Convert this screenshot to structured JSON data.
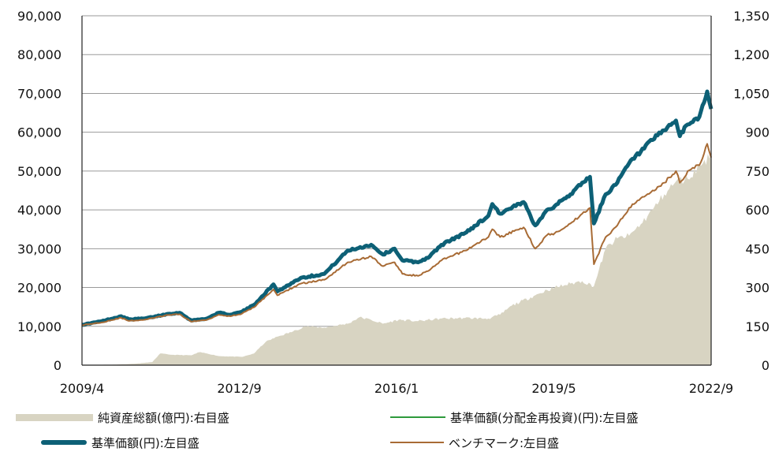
{
  "chart_data": {
    "type": "line",
    "left_axis": {
      "ticks": [
        "0",
        "10,000",
        "20,000",
        "30,000",
        "40,000",
        "50,000",
        "60,000",
        "70,000",
        "80,000",
        "90,000"
      ],
      "ylim": [
        0,
        90000
      ]
    },
    "right_axis": {
      "ticks": [
        "0",
        "150",
        "300",
        "450",
        "600",
        "750",
        "900",
        "1,050",
        "1,200",
        "1,350"
      ],
      "ylim": [
        0,
        1350
      ]
    },
    "x_ticks": [
      "2009/4",
      "2012/9",
      "2016/1",
      "2019/5",
      "2022/9"
    ],
    "x_range": [
      "2009/4",
      "2022/9"
    ],
    "grid": "horizontal",
    "legend_placement": "bottom",
    "series": [
      {
        "name": "純資産総額(億円):右目盛",
        "kind": "area",
        "axis": "right",
        "color": "#d8d4c2",
        "points": [
          [
            "2009/4",
            1
          ],
          [
            "2009/12",
            2
          ],
          [
            "2010/6",
            6
          ],
          [
            "2010/10",
            12
          ],
          [
            "2010/12",
            45
          ],
          [
            "2011/3",
            40
          ],
          [
            "2011/8",
            38
          ],
          [
            "2011/10",
            50
          ],
          [
            "2011/12",
            45
          ],
          [
            "2012/3",
            35
          ],
          [
            "2012/9",
            32
          ],
          [
            "2012/12",
            45
          ],
          [
            "2013/3",
            90
          ],
          [
            "2013/6",
            110
          ],
          [
            "2013/10",
            130
          ],
          [
            "2014/1",
            150
          ],
          [
            "2014/6",
            145
          ],
          [
            "2014/12",
            160
          ],
          [
            "2015/3",
            185
          ],
          [
            "2015/6",
            175
          ],
          [
            "2015/9",
            160
          ],
          [
            "2016/1",
            175
          ],
          [
            "2016/6",
            170
          ],
          [
            "2016/12",
            180
          ],
          [
            "2017/6",
            182
          ],
          [
            "2017/12",
            180
          ],
          [
            "2018/3",
            195
          ],
          [
            "2018/6",
            230
          ],
          [
            "2018/12",
            270
          ],
          [
            "2019/3",
            290
          ],
          [
            "2019/5",
            300
          ],
          [
            "2019/9",
            315
          ],
          [
            "2019/12",
            325
          ],
          [
            "2020/3",
            305
          ],
          [
            "2020/6",
            450
          ],
          [
            "2020/9",
            490
          ],
          [
            "2020/12",
            500
          ],
          [
            "2021/3",
            545
          ],
          [
            "2021/6",
            600
          ],
          [
            "2021/9",
            660
          ],
          [
            "2021/12",
            710
          ],
          [
            "2022/3",
            720
          ],
          [
            "2022/6",
            770
          ],
          [
            "2022/9",
            810
          ]
        ]
      },
      {
        "name": "基準価額(分配金再投資)(円):左目盛",
        "kind": "line",
        "axis": "left",
        "color": "#2e9a3c",
        "points": [
          [
            "2009/4",
            10400
          ],
          [
            "2009/9",
            11300
          ],
          [
            "2010/2",
            12600
          ],
          [
            "2010/4",
            11800
          ],
          [
            "2010/8",
            12000
          ],
          [
            "2011/2",
            13200
          ],
          [
            "2011/5",
            13500
          ],
          [
            "2011/8",
            11500
          ],
          [
            "2011/12",
            12000
          ],
          [
            "2012/3",
            13500
          ],
          [
            "2012/6",
            13000
          ],
          [
            "2012/9",
            13800
          ],
          [
            "2012/12",
            15500
          ],
          [
            "2013/5",
            20800
          ],
          [
            "2013/6",
            19000
          ],
          [
            "2013/12",
            22500
          ],
          [
            "2014/6",
            23500
          ],
          [
            "2014/12",
            29500
          ],
          [
            "2015/6",
            31000
          ],
          [
            "2015/9",
            28500
          ],
          [
            "2015/12",
            30000
          ],
          [
            "2016/2",
            27000
          ],
          [
            "2016/6",
            26500
          ],
          [
            "2016/9",
            28000
          ],
          [
            "2016/12",
            31000
          ],
          [
            "2017/6",
            34000
          ],
          [
            "2017/12",
            38500
          ],
          [
            "2018/1",
            41500
          ],
          [
            "2018/3",
            39000
          ],
          [
            "2018/9",
            42000
          ],
          [
            "2018/12",
            36000
          ],
          [
            "2019/3",
            40000
          ],
          [
            "2019/5",
            41000
          ],
          [
            "2019/9",
            44000
          ],
          [
            "2019/12",
            47000
          ],
          [
            "2020/2",
            48500
          ],
          [
            "2020/3",
            36500
          ],
          [
            "2020/6",
            44000
          ],
          [
            "2020/9",
            47000
          ],
          [
            "2020/12",
            52000
          ],
          [
            "2021/3",
            55000
          ],
          [
            "2021/6",
            58000
          ],
          [
            "2021/9",
            60500
          ],
          [
            "2021/12",
            63000
          ],
          [
            "2022/1",
            59000
          ],
          [
            "2022/3",
            62000
          ],
          [
            "2022/6",
            64000
          ],
          [
            "2022/8",
            70500
          ],
          [
            "2022/9",
            66000
          ]
        ]
      },
      {
        "name": "基準価額(円):左目盛",
        "kind": "line",
        "axis": "left",
        "color": "#0d6076",
        "points": [
          [
            "2009/4",
            10400
          ],
          [
            "2009/9",
            11300
          ],
          [
            "2010/2",
            12600
          ],
          [
            "2010/4",
            11800
          ],
          [
            "2010/8",
            12000
          ],
          [
            "2011/2",
            13200
          ],
          [
            "2011/5",
            13500
          ],
          [
            "2011/8",
            11500
          ],
          [
            "2011/12",
            12000
          ],
          [
            "2012/3",
            13500
          ],
          [
            "2012/6",
            13000
          ],
          [
            "2012/9",
            13800
          ],
          [
            "2012/12",
            15500
          ],
          [
            "2013/5",
            20800
          ],
          [
            "2013/6",
            19000
          ],
          [
            "2013/12",
            22500
          ],
          [
            "2014/6",
            23500
          ],
          [
            "2014/12",
            29500
          ],
          [
            "2015/6",
            31000
          ],
          [
            "2015/9",
            28500
          ],
          [
            "2015/12",
            30000
          ],
          [
            "2016/2",
            27000
          ],
          [
            "2016/6",
            26500
          ],
          [
            "2016/9",
            28000
          ],
          [
            "2016/12",
            31000
          ],
          [
            "2017/6",
            34000
          ],
          [
            "2017/12",
            38500
          ],
          [
            "2018/1",
            41500
          ],
          [
            "2018/3",
            39000
          ],
          [
            "2018/9",
            42000
          ],
          [
            "2018/12",
            36000
          ],
          [
            "2019/3",
            40000
          ],
          [
            "2019/5",
            41000
          ],
          [
            "2019/9",
            44000
          ],
          [
            "2019/12",
            47000
          ],
          [
            "2020/2",
            48500
          ],
          [
            "2020/3",
            36500
          ],
          [
            "2020/6",
            44000
          ],
          [
            "2020/9",
            47000
          ],
          [
            "2020/12",
            52000
          ],
          [
            "2021/3",
            55000
          ],
          [
            "2021/6",
            58000
          ],
          [
            "2021/9",
            60500
          ],
          [
            "2021/12",
            63000
          ],
          [
            "2022/1",
            59000
          ],
          [
            "2022/3",
            62000
          ],
          [
            "2022/6",
            64000
          ],
          [
            "2022/8",
            70500
          ],
          [
            "2022/9",
            66000
          ]
        ]
      },
      {
        "name": "ベンチマーク:左目盛",
        "kind": "line",
        "axis": "left",
        "color": "#a86b35",
        "points": [
          [
            "2009/4",
            10300
          ],
          [
            "2009/9",
            11000
          ],
          [
            "2010/2",
            12200
          ],
          [
            "2010/4",
            11400
          ],
          [
            "2010/8",
            11700
          ],
          [
            "2011/2",
            12900
          ],
          [
            "2011/5",
            13100
          ],
          [
            "2011/8",
            11200
          ],
          [
            "2011/12",
            11700
          ],
          [
            "2012/3",
            13000
          ],
          [
            "2012/6",
            12600
          ],
          [
            "2012/9",
            13300
          ],
          [
            "2012/12",
            14900
          ],
          [
            "2013/5",
            19500
          ],
          [
            "2013/6",
            18000
          ],
          [
            "2013/12",
            21000
          ],
          [
            "2014/6",
            22000
          ],
          [
            "2014/12",
            26500
          ],
          [
            "2015/6",
            28000
          ],
          [
            "2015/9",
            25500
          ],
          [
            "2015/12",
            26500
          ],
          [
            "2016/2",
            23500
          ],
          [
            "2016/6",
            23000
          ],
          [
            "2016/9",
            24500
          ],
          [
            "2016/12",
            27000
          ],
          [
            "2017/6",
            29500
          ],
          [
            "2017/12",
            33000
          ],
          [
            "2018/1",
            35000
          ],
          [
            "2018/3",
            33000
          ],
          [
            "2018/9",
            35500
          ],
          [
            "2018/12",
            30000
          ],
          [
            "2019/3",
            33500
          ],
          [
            "2019/5",
            34000
          ],
          [
            "2019/9",
            36500
          ],
          [
            "2019/12",
            39000
          ],
          [
            "2020/2",
            40500
          ],
          [
            "2020/3",
            26000
          ],
          [
            "2020/6",
            33000
          ],
          [
            "2020/9",
            36000
          ],
          [
            "2020/12",
            40500
          ],
          [
            "2021/3",
            43000
          ],
          [
            "2021/6",
            45000
          ],
          [
            "2021/9",
            47000
          ],
          [
            "2021/12",
            50000
          ],
          [
            "2022/1",
            47000
          ],
          [
            "2022/3",
            50000
          ],
          [
            "2022/6",
            51500
          ],
          [
            "2022/8",
            57000
          ],
          [
            "2022/9",
            53500
          ]
        ]
      }
    ]
  },
  "legend": {
    "nav": "純資産総額(億円):右目盛",
    "nav_reinvest": "基準価額(分配金再投資)(円):左目盛",
    "nav_price": "基準価額(円):左目盛",
    "benchmark": "ベンチマーク:左目盛"
  }
}
